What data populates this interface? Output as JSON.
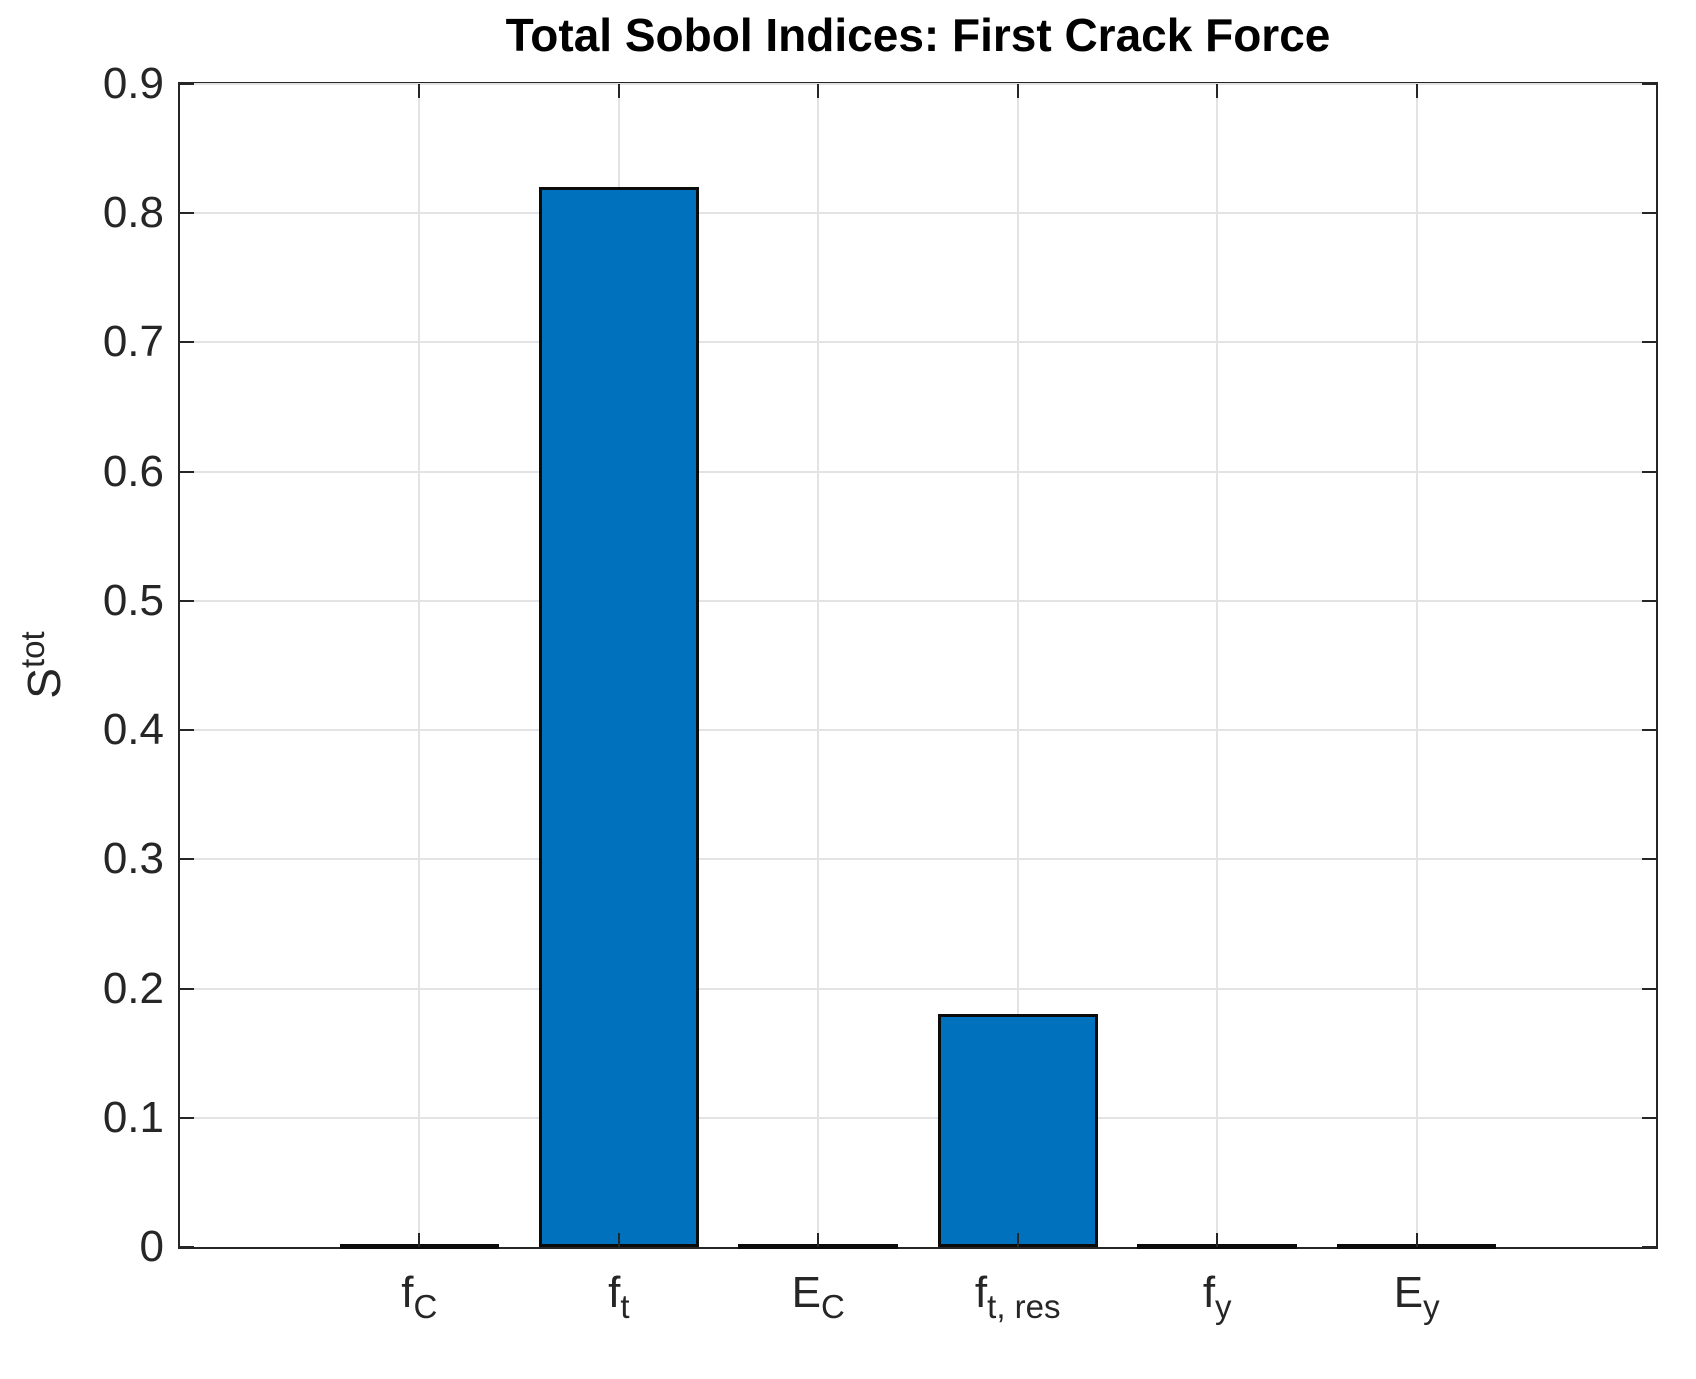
{
  "figure": {
    "title": "Total Sobol Indices: First Crack Force",
    "ylabel": {
      "base": "S",
      "sup": "tot"
    }
  },
  "chart_data": {
    "type": "bar",
    "title": "Total Sobol Indices: First Crack Force",
    "xlabel": "",
    "ylabel": "S^{tot}",
    "categories": [
      "f_C",
      "f_t",
      "E_C",
      "f_{t, res}",
      "f_y",
      "E_y"
    ],
    "categories_rich": [
      {
        "base": "f",
        "sub": "C"
      },
      {
        "base": "f",
        "sub": "t"
      },
      {
        "base": "E",
        "sub": "C"
      },
      {
        "base": "f",
        "sub": "t, res"
      },
      {
        "base": "f",
        "sub": "y"
      },
      {
        "base": "E",
        "sub": "y"
      }
    ],
    "values": [
      0,
      0.82,
      0,
      0.18,
      0,
      0
    ],
    "ylim": [
      0,
      0.9
    ],
    "yticks": [
      0,
      0.1,
      0.2,
      0.3,
      0.4,
      0.5,
      0.6,
      0.7,
      0.8,
      0.9
    ],
    "ytick_labels": [
      "0",
      "0.1",
      "0.2",
      "0.3",
      "0.4",
      "0.5",
      "0.6",
      "0.7",
      "0.8",
      "0.9"
    ],
    "grid": true,
    "legend_position": "none",
    "bar_color": "#0072BD",
    "bar_edge_color": "#0b0b0b",
    "axis_color": "#262626",
    "grid_color": "#e3e3e3",
    "background": "#ffffff"
  }
}
